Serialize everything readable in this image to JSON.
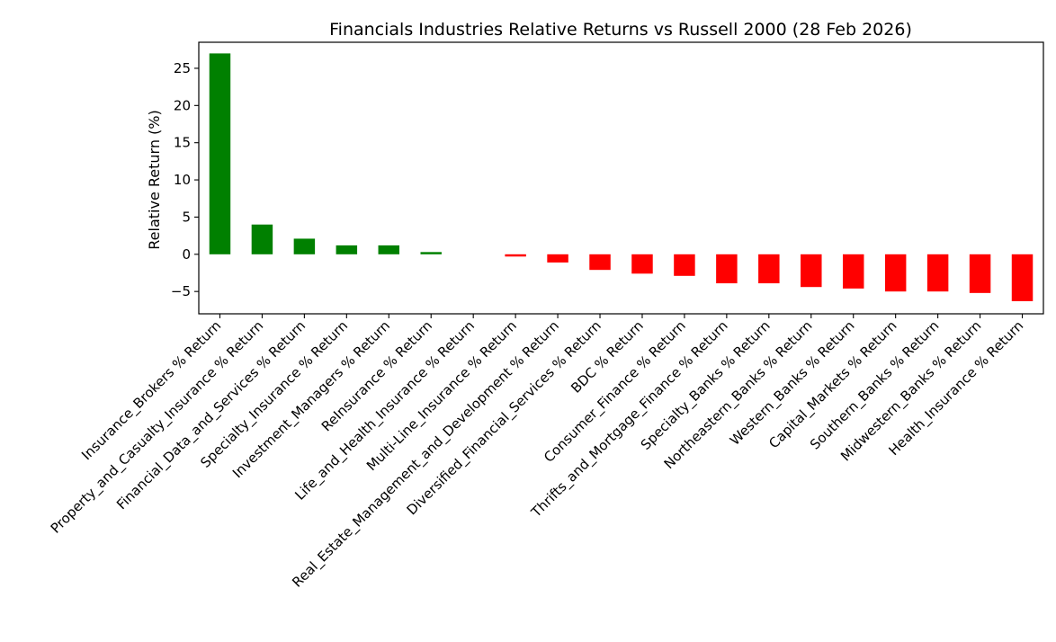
{
  "chart_data": {
    "type": "bar",
    "title": "Financials Industries Relative Returns vs Russell 2000 (28 Feb 2026)",
    "xlabel": "",
    "ylabel": "Relative Return (%)",
    "ylim": [
      -8,
      28.5
    ],
    "yticks": [
      -5,
      0,
      5,
      10,
      15,
      20,
      25
    ],
    "ytick_labels": [
      "−5",
      "0",
      "5",
      "10",
      "15",
      "20",
      "25"
    ],
    "grid": false,
    "positive_color": "#008000",
    "negative_color": "#ff0000",
    "categories": [
      "Insurance_Brokers % Return",
      "Property_and_Casualty_Insurance % Return",
      "Financial_Data_and_Services % Return",
      "Specialty_Insurance % Return",
      "Investment_Managers % Return",
      "ReInsurance % Return",
      "Life_and_Health_Insurance % Return",
      "Multi-Line_Insurance % Return",
      "Real_Estate_Management_and_Development % Return",
      "Diversified_Financial_Services % Return",
      "BDC % Return",
      "Consumer_Finance % Return",
      "Thrifts_and_Mortgage_Finance % Return",
      "Specialty_Banks % Return",
      "Northeastern_Banks % Return",
      "Western_Banks % Return",
      "Capital_Markets % Return",
      "Southern_Banks % Return",
      "Midwestern_Banks % Return",
      "Health_Insurance % Return"
    ],
    "values": [
      27.0,
      4.0,
      2.1,
      1.2,
      1.2,
      0.3,
      0.0,
      -0.3,
      -1.1,
      -2.1,
      -2.6,
      -2.9,
      -3.9,
      -3.9,
      -4.4,
      -4.6,
      -5.0,
      -5.0,
      -5.2,
      -6.3
    ]
  }
}
